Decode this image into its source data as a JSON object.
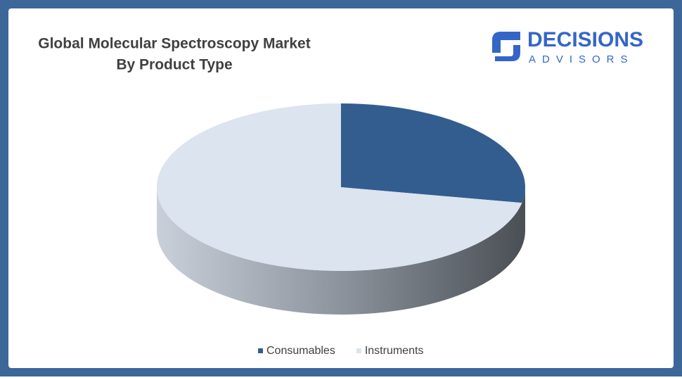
{
  "chart_data": {
    "type": "pie",
    "title": "Global Molecular Spectroscopy Market",
    "subtitle": "By Product Type",
    "categories": [
      "Consumables",
      "Instruments"
    ],
    "values": [
      28,
      72
    ],
    "colors": [
      "#335d8f",
      "#dbe4ef"
    ]
  },
  "logo": {
    "name": "DECISIONS",
    "tagline": "ADVISORS"
  }
}
